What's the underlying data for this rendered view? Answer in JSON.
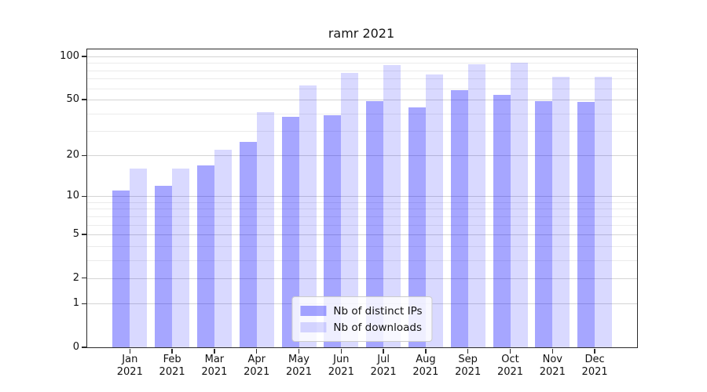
{
  "chart_data": {
    "type": "bar",
    "title": "ramr 2021",
    "yscale": "log1p",
    "ylim": [
      0,
      112
    ],
    "yticks": [
      0,
      1,
      2,
      5,
      10,
      20,
      50,
      100
    ],
    "minor_yticks": [
      3,
      4,
      6,
      7,
      8,
      9,
      30,
      40,
      60,
      70,
      80,
      90
    ],
    "grid": "horizontal",
    "categories": [
      "Jan",
      "Feb",
      "Mar",
      "Apr",
      "May",
      "Jun",
      "Jul",
      "Aug",
      "Sep",
      "Oct",
      "Nov",
      "Dec"
    ],
    "tick_label_year": "2021",
    "series": [
      {
        "name": "Nb of distinct IPs",
        "color": "rgba(0,0,255,0.35)",
        "values": [
          11,
          12,
          17,
          25,
          38,
          39,
          49,
          44,
          58,
          54,
          49,
          48
        ]
      },
      {
        "name": "Nb of downloads",
        "color": "rgba(0,0,255,0.15)",
        "values": [
          16,
          16,
          22,
          41,
          63,
          77,
          87,
          75,
          88,
          91,
          72,
          72
        ]
      }
    ],
    "legend_position": "lower-center"
  }
}
